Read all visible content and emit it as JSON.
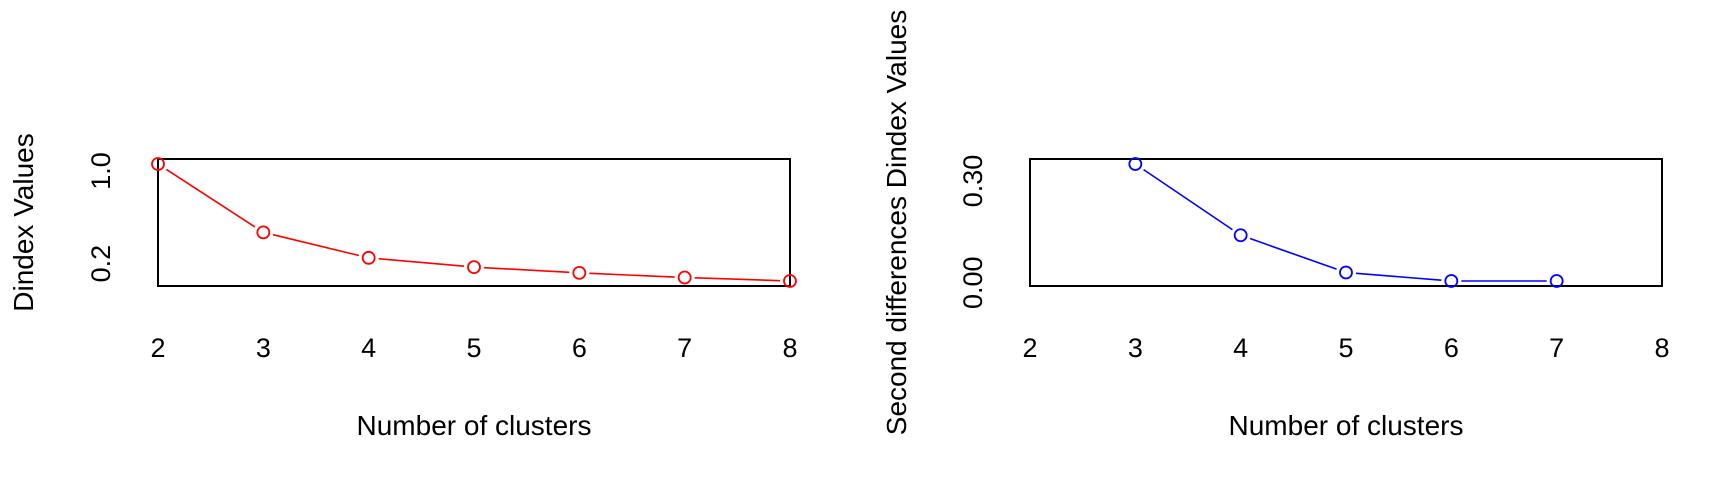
{
  "chart_data": [
    {
      "type": "line",
      "xlabel": "Number of clusters",
      "ylabel": "Dindex Values",
      "x": [
        2,
        3,
        4,
        5,
        6,
        7,
        8
      ],
      "values": [
        1.06,
        0.47,
        0.25,
        0.17,
        0.12,
        0.08,
        0.05
      ],
      "xlim": [
        2,
        8
      ],
      "ylim": [
        0.05,
        1.06
      ],
      "xticks": [
        "2",
        "3",
        "4",
        "5",
        "6",
        "7",
        "8"
      ],
      "yticks": [
        {
          "value": 1.0,
          "label": "1.0"
        },
        {
          "value": 0.2,
          "label": "0.2"
        }
      ],
      "color": "#ff0000",
      "marker": "open-circle",
      "grid": false
    },
    {
      "type": "line",
      "xlabel": "Number of clusters",
      "ylabel": "Second differences Dindex Values",
      "x": [
        3,
        4,
        5,
        6,
        7
      ],
      "values": [
        0.35,
        0.14,
        0.03,
        0.005,
        0.005
      ],
      "xlim": [
        2,
        8
      ],
      "ylim": [
        0.005,
        0.35
      ],
      "xticks": [
        "2",
        "3",
        "4",
        "5",
        "6",
        "7",
        "8"
      ],
      "yticks": [
        {
          "value": 0.3,
          "label": "0.30"
        },
        {
          "value": 0.0,
          "label": "0.00"
        }
      ],
      "color": "#0000ff",
      "marker": "open-circle",
      "grid": false
    }
  ]
}
